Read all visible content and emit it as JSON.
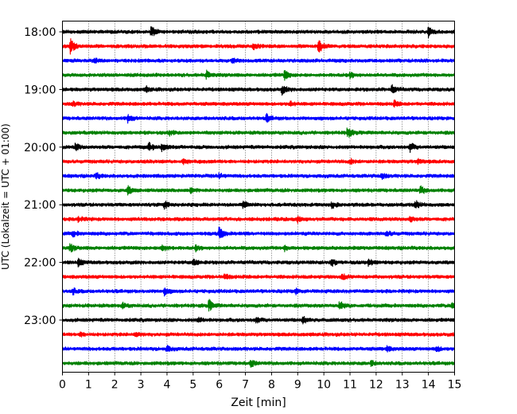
{
  "chart_data": {
    "type": "line",
    "title": "",
    "xlabel": "Zeit  [min]",
    "ylabel": "UTC (Lokalzeit = UTC + 01:00)",
    "xlim": [
      0,
      15
    ],
    "xticks": [
      0,
      1,
      2,
      3,
      4,
      5,
      6,
      7,
      8,
      9,
      10,
      11,
      12,
      13,
      14,
      15
    ],
    "xtick_labels": [
      "0",
      "1",
      "2",
      "3",
      "4",
      "5",
      "6",
      "7",
      "8",
      "9",
      "10",
      "11",
      "12",
      "13",
      "14",
      "15"
    ],
    "yticks": [
      {
        "label": "18:00",
        "trace": 0
      },
      {
        "label": "19:00",
        "trace": 4
      },
      {
        "label": "20:00",
        "trace": 8
      },
      {
        "label": "21:00",
        "trace": 12
      },
      {
        "label": "22:00",
        "trace": 16
      },
      {
        "label": "23:00",
        "trace": 20
      }
    ],
    "grid": "vertical dotted",
    "trace_colors": [
      "#000000",
      "#ff0000",
      "#0000ff",
      "#008000"
    ],
    "trace_minutes": 15,
    "traces": [
      {
        "start": "18:00",
        "events": [
          [
            3.4,
            0.7
          ],
          [
            14.0,
            0.6
          ]
        ]
      },
      {
        "start": "18:15",
        "events": [
          [
            0.3,
            1.0
          ],
          [
            9.8,
            0.9
          ],
          [
            7.3,
            0.4
          ]
        ]
      },
      {
        "start": "18:30",
        "events": [
          [
            1.2,
            0.35
          ],
          [
            6.5,
            0.3
          ]
        ]
      },
      {
        "start": "18:45",
        "events": [
          [
            5.5,
            0.55
          ],
          [
            8.5,
            0.6
          ],
          [
            11.0,
            0.35
          ]
        ]
      },
      {
        "start": "19:00",
        "events": [
          [
            8.4,
            0.55
          ],
          [
            12.6,
            0.5
          ],
          [
            3.2,
            0.3
          ]
        ]
      },
      {
        "start": "19:15",
        "events": [
          [
            8.7,
            0.35
          ],
          [
            12.7,
            0.35
          ],
          [
            0.4,
            0.3
          ]
        ]
      },
      {
        "start": "19:30",
        "events": [
          [
            2.5,
            0.5
          ],
          [
            7.8,
            0.45
          ]
        ]
      },
      {
        "start": "19:45",
        "events": [
          [
            10.9,
            0.7
          ],
          [
            4.1,
            0.3
          ]
        ]
      },
      {
        "start": "20:00",
        "events": [
          [
            0.5,
            0.45
          ],
          [
            3.3,
            0.55
          ],
          [
            3.8,
            0.55
          ],
          [
            13.3,
            0.55
          ]
        ]
      },
      {
        "start": "20:15",
        "events": [
          [
            4.6,
            0.3
          ],
          [
            11.0,
            0.3
          ],
          [
            13.6,
            0.3
          ]
        ]
      },
      {
        "start": "20:30",
        "events": [
          [
            1.3,
            0.35
          ],
          [
            6.0,
            0.3
          ],
          [
            12.2,
            0.4
          ]
        ]
      },
      {
        "start": "20:45",
        "events": [
          [
            2.5,
            0.5
          ],
          [
            4.9,
            0.3
          ],
          [
            13.7,
            0.5
          ]
        ]
      },
      {
        "start": "21:00",
        "events": [
          [
            3.9,
            0.5
          ],
          [
            6.9,
            0.4
          ],
          [
            10.3,
            0.4
          ],
          [
            13.5,
            0.55
          ]
        ]
      },
      {
        "start": "21:15",
        "events": [
          [
            0.6,
            0.4
          ],
          [
            9.0,
            0.35
          ],
          [
            13.3,
            0.35
          ]
        ]
      },
      {
        "start": "21:30",
        "events": [
          [
            6.0,
            0.9
          ],
          [
            0.4,
            0.35
          ],
          [
            12.4,
            0.35
          ]
        ]
      },
      {
        "start": "21:45",
        "events": [
          [
            0.3,
            0.5
          ],
          [
            3.8,
            0.55
          ],
          [
            5.1,
            0.3
          ],
          [
            8.5,
            0.3
          ]
        ]
      },
      {
        "start": "22:00",
        "events": [
          [
            0.6,
            0.45
          ],
          [
            5.0,
            0.45
          ],
          [
            10.3,
            0.45
          ],
          [
            11.7,
            0.4
          ]
        ]
      },
      {
        "start": "22:15",
        "events": [
          [
            6.2,
            0.35
          ],
          [
            10.7,
            0.35
          ]
        ]
      },
      {
        "start": "22:30",
        "events": [
          [
            0.4,
            0.35
          ],
          [
            3.9,
            0.45
          ],
          [
            8.9,
            0.35
          ]
        ]
      },
      {
        "start": "22:45",
        "events": [
          [
            5.6,
            0.7
          ],
          [
            10.6,
            0.6
          ],
          [
            2.3,
            0.35
          ],
          [
            14.9,
            0.35
          ]
        ]
      },
      {
        "start": "23:00",
        "events": [
          [
            7.4,
            0.4
          ],
          [
            9.2,
            0.45
          ],
          [
            5.2,
            0.3
          ]
        ]
      },
      {
        "start": "23:15",
        "events": [
          [
            2.8,
            0.35
          ],
          [
            0.7,
            0.25
          ]
        ]
      },
      {
        "start": "23:30",
        "events": [
          [
            4.0,
            0.35
          ],
          [
            12.4,
            0.35
          ],
          [
            14.3,
            0.35
          ]
        ]
      },
      {
        "start": "23:45",
        "events": [
          [
            7.2,
            0.45
          ],
          [
            11.8,
            0.3
          ]
        ]
      }
    ]
  }
}
